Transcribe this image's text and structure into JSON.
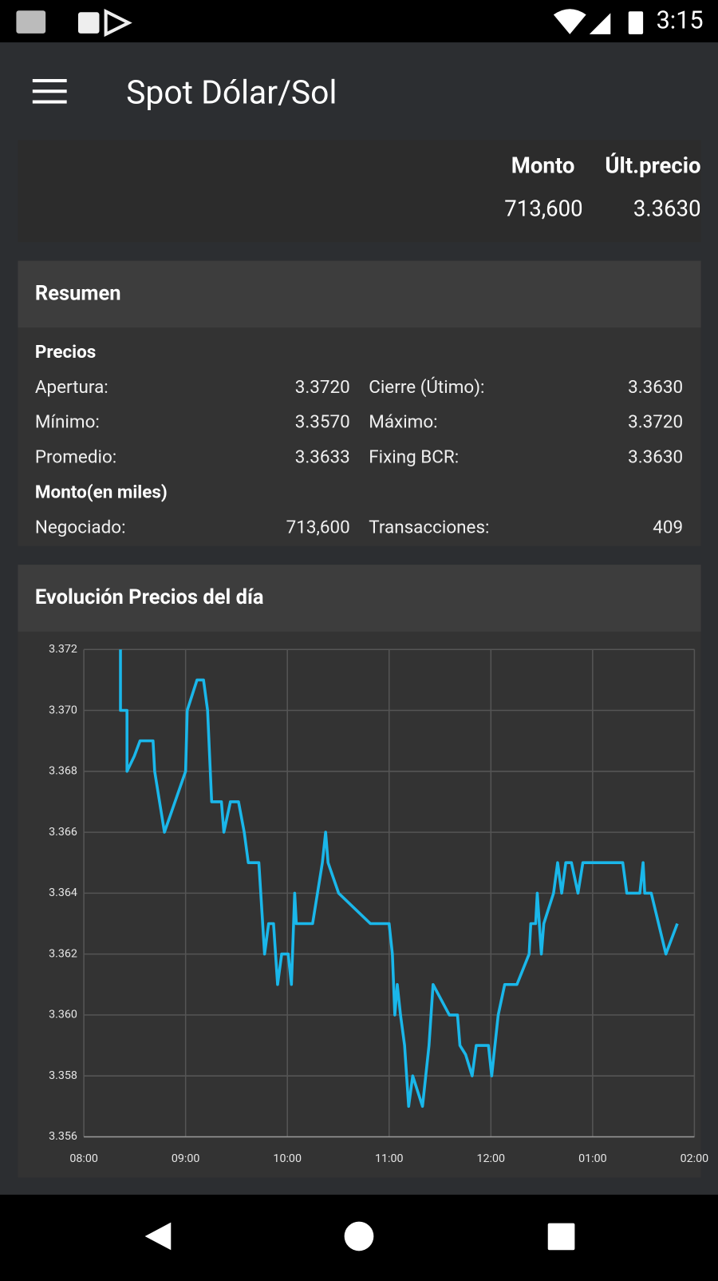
{
  "status_bar": {
    "time": "3:15"
  },
  "app_bar": {
    "title": "Spot Dólar/Sol"
  },
  "header": {
    "columns": [
      "Monto",
      "Últ.precio"
    ],
    "values": [
      "713,600",
      "3.3630"
    ]
  },
  "summary": {
    "title": "Resumen",
    "sections": [
      {
        "title": "Precios",
        "rows": [
          [
            "Apertura:",
            "3.3720",
            "Cierre (Útimo):",
            "3.3630"
          ],
          [
            "Mínimo:",
            "3.3570",
            "Máximo:",
            "3.3720"
          ],
          [
            "Promedio:",
            "3.3633",
            "Fixing BCR:",
            "3.3630"
          ]
        ]
      },
      {
        "title": "Monto(en miles)",
        "rows": [
          [
            "Negociado:",
            "713,600",
            "Transacciones:",
            "409"
          ]
        ]
      }
    ]
  },
  "chart_data": {
    "type": "line",
    "title": "Evolución Precios del día",
    "x": [
      8.36,
      8.36,
      8.424,
      8.424,
      8.496,
      8.552,
      8.68,
      8.696,
      8.792,
      9.0,
      9.016,
      9.112,
      9.176,
      9.216,
      9.256,
      9.352,
      9.376,
      9.44,
      9.52,
      9.576,
      9.616,
      9.72,
      9.776,
      9.816,
      9.864,
      9.904,
      9.944,
      10.008,
      10.04,
      10.072,
      10.088,
      10.248,
      10.344,
      10.376,
      10.4,
      10.504,
      10.816,
      11.0,
      11.032,
      11.056,
      11.08,
      11.112,
      11.152,
      11.192,
      11.232,
      11.328,
      11.392,
      11.432,
      11.592,
      11.672,
      11.696,
      11.752,
      11.816,
      11.856,
      11.976,
      12.008,
      12.072,
      12.136,
      12.256,
      12.376,
      12.392,
      12.44,
      12.456,
      12.496,
      12.52,
      12.616,
      12.656,
      12.696,
      12.736,
      12.792,
      12.856,
      12.904,
      13.296,
      13.336,
      13.464,
      13.496,
      13.512,
      13.576,
      13.72,
      13.832
    ],
    "series": [
      {
        "color": "#1ab7ea",
        "values": [
          3.372,
          3.37,
          3.37,
          3.368,
          3.3685,
          3.369,
          3.369,
          3.368,
          3.366,
          3.368,
          3.37,
          3.371,
          3.371,
          3.37,
          3.367,
          3.367,
          3.366,
          3.367,
          3.367,
          3.366,
          3.365,
          3.365,
          3.362,
          3.363,
          3.363,
          3.361,
          3.362,
          3.362,
          3.361,
          3.364,
          3.363,
          3.363,
          3.365,
          3.366,
          3.365,
          3.364,
          3.363,
          3.363,
          3.362,
          3.36,
          3.361,
          3.36,
          3.359,
          3.357,
          3.358,
          3.357,
          3.359,
          3.361,
          3.36,
          3.36,
          3.359,
          3.3587,
          3.358,
          3.359,
          3.359,
          3.358,
          3.36,
          3.361,
          3.361,
          3.362,
          3.363,
          3.363,
          3.364,
          3.362,
          3.363,
          3.364,
          3.365,
          3.364,
          3.365,
          3.365,
          3.364,
          3.365,
          3.365,
          3.364,
          3.364,
          3.365,
          3.364,
          3.364,
          3.362,
          3.363
        ]
      }
    ],
    "xlim": [
      8,
      14
    ],
    "xticks": [
      {
        "value": 8,
        "label": "08:00"
      },
      {
        "value": 9,
        "label": "09:00"
      },
      {
        "value": 10,
        "label": "10:00"
      },
      {
        "value": 11,
        "label": "11:00"
      },
      {
        "value": 12,
        "label": "12:00"
      },
      {
        "value": 13,
        "label": "01:00"
      },
      {
        "value": 14,
        "label": "02:00"
      }
    ],
    "ylim": [
      3.356,
      3.372
    ],
    "yticks": [
      3.356,
      3.358,
      {
        "value": 3.36,
        "label": "3.360"
      },
      3.362,
      3.364,
      3.366,
      3.368,
      {
        "value": 3.37,
        "label": "3.370"
      },
      3.372
    ],
    "grid": true
  }
}
